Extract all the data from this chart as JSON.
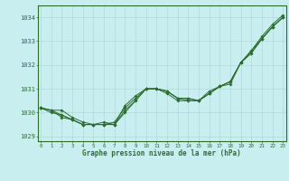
{
  "title": "Graphe pression niveau de la mer (hPa)",
  "background_color": "#c8eef0",
  "grid_color": "#b0d8da",
  "line_color": "#2d6e2d",
  "x_ticks": [
    0,
    1,
    2,
    3,
    4,
    5,
    6,
    7,
    8,
    9,
    10,
    11,
    12,
    13,
    14,
    15,
    16,
    17,
    18,
    19,
    20,
    21,
    22,
    23
  ],
  "ylim": [
    1028.8,
    1034.5
  ],
  "yticks": [
    1029,
    1030,
    1031,
    1032,
    1033,
    1034
  ],
  "series": [
    [
      1030.2,
      1030.1,
      1030.1,
      1029.8,
      1029.6,
      1029.5,
      1029.6,
      1029.5,
      1030.3,
      1030.7,
      1031.0,
      1031.0,
      1030.9,
      1030.6,
      1030.6,
      1030.5,
      1030.8,
      1031.1,
      1031.3,
      1032.1,
      1032.5,
      1033.1,
      1033.6,
      1034.0
    ],
    [
      1030.2,
      1030.0,
      1029.9,
      1029.7,
      1029.5,
      1029.5,
      1029.5,
      1029.5,
      1030.1,
      1030.5,
      1031.0,
      1031.0,
      1030.9,
      1030.6,
      1030.5,
      1030.5,
      1030.8,
      1031.1,
      1031.2,
      1032.1,
      1032.5,
      1033.1,
      1033.6,
      1034.0
    ],
    [
      1030.2,
      1030.1,
      1029.8,
      1029.7,
      1029.5,
      1029.5,
      1029.5,
      1029.6,
      1030.2,
      1030.6,
      1031.0,
      1031.0,
      1030.9,
      1030.6,
      1030.6,
      1030.5,
      1030.9,
      1031.1,
      1031.3,
      1032.1,
      1032.6,
      1033.1,
      1033.6,
      1034.0
    ],
    [
      1030.2,
      1030.1,
      1029.9,
      1029.7,
      1029.5,
      1029.5,
      1029.5,
      1029.5,
      1030.0,
      1030.5,
      1031.0,
      1031.0,
      1030.8,
      1030.5,
      1030.5,
      1030.5,
      1030.8,
      1031.1,
      1031.3,
      1032.1,
      1032.6,
      1033.2,
      1033.7,
      1034.1
    ]
  ]
}
